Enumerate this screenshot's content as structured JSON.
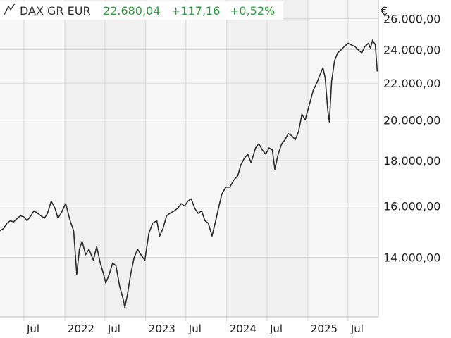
{
  "header": {
    "instrument": "DAX GR EUR",
    "last": "22.680,04",
    "change": "+117,16",
    "change_pct": "+0,52%",
    "currency": "€",
    "accent_color": "#2e9e3e"
  },
  "chart_data": {
    "type": "line",
    "title": "DAX GR EUR",
    "ylabel": "€",
    "y_scale": "log",
    "ylim": [
      12000,
      27300
    ],
    "y_ticks": [
      14000,
      16000,
      18000,
      20000,
      22000,
      24000,
      26000
    ],
    "y_tick_labels": [
      "14.000,00",
      "16.000,00",
      "18.000,00",
      "20.000,00",
      "22.000,00",
      "24.000,00",
      "26.000,00"
    ],
    "x_ticks": [
      {
        "date": "2021-07-01",
        "label": "Jul"
      },
      {
        "date": "2022-01-01",
        "label": "2022"
      },
      {
        "date": "2022-07-01",
        "label": "Jul"
      },
      {
        "date": "2023-01-01",
        "label": "2023"
      },
      {
        "date": "2023-07-01",
        "label": "Jul"
      },
      {
        "date": "2024-01-01",
        "label": "2024"
      },
      {
        "date": "2024-07-01",
        "label": "Jul"
      },
      {
        "date": "2025-01-01",
        "label": "2025"
      },
      {
        "date": "2025-07-01",
        "label": "Jul"
      }
    ],
    "xlim": [
      "2021-03-15",
      "2025-11-15"
    ],
    "grid": true,
    "series": [
      {
        "x": [
          "2021-03-15",
          "2021-04-01",
          "2021-04-15",
          "2021-05-01",
          "2021-05-15",
          "2021-06-01",
          "2021-06-15",
          "2021-07-01",
          "2021-07-15",
          "2021-08-01",
          "2021-08-15",
          "2021-09-01",
          "2021-09-15",
          "2021-10-01",
          "2021-10-15",
          "2021-11-01",
          "2021-11-18",
          "2021-12-01",
          "2021-12-15",
          "2022-01-05",
          "2022-01-25",
          "2022-02-10",
          "2022-02-24",
          "2022-03-08",
          "2022-03-20",
          "2022-04-05",
          "2022-04-20",
          "2022-05-10",
          "2022-05-25",
          "2022-06-10",
          "2022-06-25",
          "2022-07-05",
          "2022-07-20",
          "2022-08-05",
          "2022-08-20",
          "2022-09-05",
          "2022-09-20",
          "2022-09-29",
          "2022-10-10",
          "2022-10-25",
          "2022-11-10",
          "2022-11-25",
          "2022-12-10",
          "2022-12-28",
          "2023-01-15",
          "2023-02-01",
          "2023-02-20",
          "2023-03-05",
          "2023-03-20",
          "2023-04-05",
          "2023-04-20",
          "2023-05-10",
          "2023-05-25",
          "2023-06-10",
          "2023-06-25",
          "2023-07-10",
          "2023-07-25",
          "2023-08-10",
          "2023-08-25",
          "2023-09-10",
          "2023-09-25",
          "2023-10-10",
          "2023-10-27",
          "2023-11-10",
          "2023-11-25",
          "2023-12-10",
          "2023-12-28",
          "2024-01-15",
          "2024-02-01",
          "2024-02-20",
          "2024-03-05",
          "2024-03-20",
          "2024-04-05",
          "2024-04-20",
          "2024-05-10",
          "2024-05-25",
          "2024-06-10",
          "2024-06-25",
          "2024-07-10",
          "2024-07-25",
          "2024-08-05",
          "2024-08-20",
          "2024-09-05",
          "2024-09-20",
          "2024-10-05",
          "2024-10-20",
          "2024-11-05",
          "2024-11-20",
          "2024-12-05",
          "2024-12-20",
          "2025-01-10",
          "2025-01-25",
          "2025-02-10",
          "2025-02-25",
          "2025-03-10",
          "2025-03-20",
          "2025-04-01",
          "2025-04-08",
          "2025-04-18",
          "2025-05-01",
          "2025-05-15",
          "2025-06-01",
          "2025-06-15",
          "2025-07-01",
          "2025-07-15",
          "2025-08-01",
          "2025-08-15",
          "2025-09-01",
          "2025-09-15",
          "2025-10-01",
          "2025-10-10",
          "2025-10-20",
          "2025-11-01",
          "2025-11-10"
        ],
        "values": [
          15000,
          15100,
          15300,
          15400,
          15350,
          15500,
          15600,
          15550,
          15400,
          15600,
          15800,
          15700,
          15600,
          15500,
          15700,
          16200,
          15900,
          15500,
          15700,
          16100,
          15400,
          15000,
          13400,
          14300,
          14600,
          14100,
          14300,
          13900,
          14400,
          13800,
          13400,
          13100,
          13400,
          13800,
          13700,
          13000,
          12600,
          12300,
          12700,
          13400,
          14000,
          14300,
          14100,
          13900,
          14900,
          15300,
          15400,
          14800,
          15100,
          15600,
          15700,
          15800,
          15900,
          16100,
          16000,
          16200,
          16300,
          15900,
          15700,
          15800,
          15400,
          15300,
          14800,
          15300,
          15900,
          16500,
          16800,
          16800,
          17100,
          17300,
          17800,
          18100,
          18300,
          17900,
          18600,
          18800,
          18500,
          18300,
          18600,
          18500,
          17600,
          18300,
          18800,
          19000,
          19300,
          19200,
          19000,
          19400,
          20300,
          20000,
          20900,
          21600,
          22000,
          22500,
          22900,
          22300,
          20500,
          19900,
          22100,
          23300,
          23800,
          24000,
          24200,
          24400,
          24300,
          24200,
          24000,
          23800,
          24200,
          24400,
          24100,
          24600,
          24300,
          22680
        ]
      }
    ]
  }
}
